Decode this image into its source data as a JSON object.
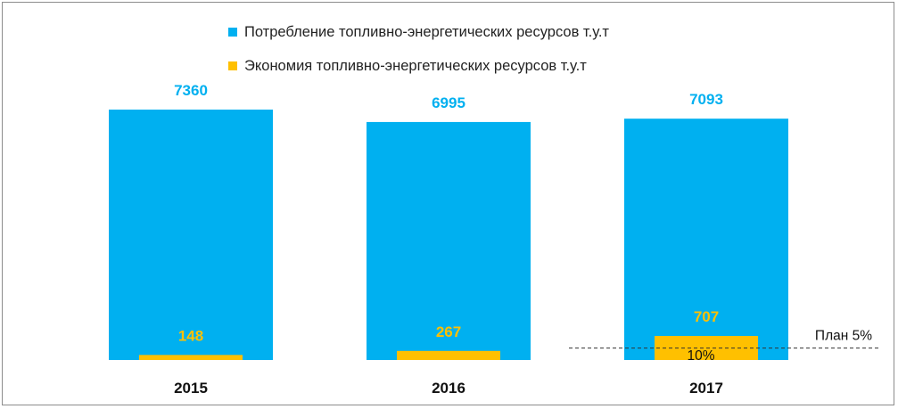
{
  "chart_data": {
    "type": "bar",
    "categories": [
      "2015",
      "2016",
      "2017"
    ],
    "series": [
      {
        "name": "Потребление топливно-энергетических ресурсов т.у.т",
        "values": [
          7360,
          6995,
          7093
        ],
        "color": "#00B0F0",
        "label_color": "#00B0F0"
      },
      {
        "name": "Экономия топливно-энергетических ресурсов т.у.т",
        "values": [
          148,
          267,
          707
        ],
        "color": "#FFC000",
        "label_color": "#FFC000"
      }
    ],
    "annotations": [
      {
        "text": "10%",
        "category": "2017"
      },
      {
        "text": "План 5%",
        "type": "dashed-reference-line",
        "value": 350
      }
    ],
    "ylim": [
      0,
      7700
    ],
    "grid": false,
    "legend_position": "top"
  }
}
